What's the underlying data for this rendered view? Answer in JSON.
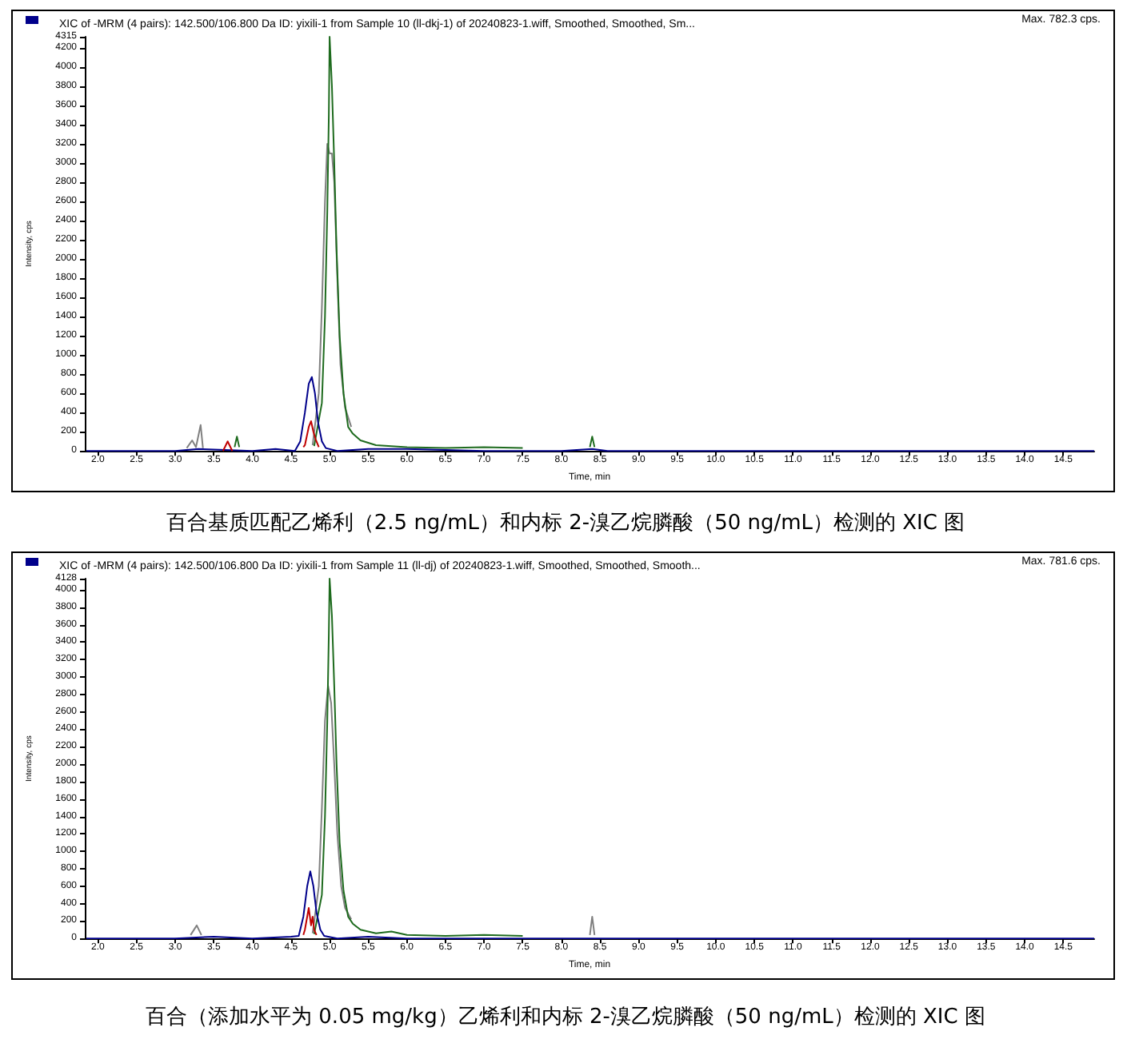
{
  "chart_data": [
    {
      "type": "line",
      "title": "XIC of -MRM (4 pairs): 142.500/106.800 Da ID: yixili-1 from Sample 10 (ll-dkj-1) of 20240823-1.wiff, Smoothed, Smoothed, Sm...",
      "xlabel": "Time, min",
      "ylabel": "Intensity, cps",
      "annotations": [
        "Max. 782.3 cps.",
        "百合基质匹配乙烯利（2.5 ng/mL）和内标 2-溴乙烷膦酸（50 ng/mL）检测的 XIC 图"
      ],
      "xlim": [
        1.83,
        14.9
      ],
      "ylim": [
        0,
        4315
      ],
      "xticks": [
        {
          "value": 2,
          "label": "2.0"
        },
        2.5,
        {
          "value": 3,
          "label": "3.0"
        },
        3.5,
        {
          "value": 4,
          "label": "4.0"
        },
        4.5,
        {
          "value": 5,
          "label": "5.0"
        },
        5.5,
        {
          "value": 6,
          "label": "6.0"
        },
        6.5,
        {
          "value": 7,
          "label": "7.0"
        },
        7.5,
        {
          "value": 8,
          "label": "8.0"
        },
        8.5,
        {
          "value": 9,
          "label": "9.0"
        },
        9.5,
        {
          "value": 10,
          "label": "10.0"
        },
        10.5,
        {
          "value": 11,
          "label": "11.0"
        },
        11.5,
        {
          "value": 12,
          "label": "12.0"
        },
        12.5,
        {
          "value": 13,
          "label": "13.0"
        },
        13.5,
        {
          "value": 14,
          "label": "14.0"
        },
        14.5
      ],
      "yticks": [
        0,
        200,
        400,
        600,
        800,
        1000,
        1200,
        1400,
        1600,
        1800,
        2000,
        2200,
        2400,
        2600,
        2800,
        3000,
        3200,
        3400,
        3600,
        3800,
        4000,
        4200,
        4315
      ],
      "grid": false,
      "marker": "none",
      "line_style": "solid",
      "series": [
        {
          "color": "#808080",
          "x": [
            3.15,
            3.22,
            3.27,
            3.33,
            3.36,
            4.0,
            4.78,
            4.86,
            4.9,
            4.94,
            4.97,
            5.0,
            5.03,
            5.06,
            5.1,
            5.14,
            5.2,
            5.28
          ],
          "values": [
            30,
            110,
            40,
            270,
            30,
            null,
            60,
            600,
            1500,
            2600,
            3200,
            3100,
            3100,
            2800,
            1800,
            900,
            450,
            250
          ]
        },
        {
          "color": "#1e6b1e",
          "x": [
            3.77,
            3.8,
            3.83,
            4.0,
            4.8,
            4.9,
            4.94,
            4.97,
            4.99,
            5.0,
            5.03,
            5.06,
            5.09,
            5.13,
            5.18,
            5.24,
            5.3,
            5.4,
            5.6,
            6.0,
            6.5,
            7.0,
            7.5,
            8.0,
            8.37,
            8.4,
            8.43
          ],
          "values": [
            40,
            150,
            40,
            null,
            50,
            500,
            1400,
            2500,
            3500,
            4315,
            3800,
            3000,
            2100,
            1200,
            600,
            250,
            180,
            110,
            60,
            40,
            30,
            40,
            30,
            null,
            40,
            150,
            40
          ]
        },
        {
          "color": "#00008b",
          "x": [
            1.85,
            2.5,
            3.0,
            3.3,
            4.0,
            4.3,
            4.55,
            4.62,
            4.68,
            4.73,
            4.77,
            4.81,
            4.85,
            4.9,
            4.95,
            5.1,
            5.5,
            6.0,
            7.0,
            8.0,
            8.4,
            8.6,
            9.5,
            11.0,
            13.0,
            14.9
          ],
          "values": [
            0,
            0,
            0,
            20,
            0,
            20,
            0,
            100,
            400,
            700,
            770,
            600,
            300,
            100,
            30,
            0,
            20,
            20,
            0,
            0,
            20,
            0,
            0,
            0,
            0,
            0
          ]
        },
        {
          "color": "#c00000",
          "x": [
            3.62,
            3.68,
            3.74,
            4.0,
            4.66,
            4.68,
            4.73,
            4.76,
            4.79,
            4.82,
            4.86
          ],
          "values": [
            0,
            100,
            0,
            null,
            40,
            60,
            250,
            310,
            200,
            120,
            40
          ]
        }
      ]
    },
    {
      "type": "line",
      "title": "XIC of -MRM (4 pairs): 142.500/106.800 Da ID: yixili-1 from Sample 11 (ll-dj) of 20240823-1.wiff, Smoothed, Smoothed, Smooth...",
      "xlabel": "Time, min",
      "ylabel": "Intensity, cps",
      "annotations": [
        "Max. 781.6 cps.",
        "百合（添加水平为  0.05 mg/kg）乙烯利和内标 2-溴乙烷膦酸（50 ng/mL）检测的 XIC 图"
      ],
      "xlim": [
        1.83,
        14.9
      ],
      "ylim": [
        0,
        4128
      ],
      "xticks": [
        {
          "value": 2,
          "label": "2.0"
        },
        2.5,
        {
          "value": 3,
          "label": "3.0"
        },
        3.5,
        {
          "value": 4,
          "label": "4.0"
        },
        4.5,
        {
          "value": 5,
          "label": "5.0"
        },
        5.5,
        {
          "value": 6,
          "label": "6.0"
        },
        6.5,
        {
          "value": 7,
          "label": "7.0"
        },
        7.5,
        {
          "value": 8,
          "label": "8.0"
        },
        8.5,
        {
          "value": 9,
          "label": "9.0"
        },
        9.5,
        {
          "value": 10,
          "label": "10.0"
        },
        10.5,
        {
          "value": 11,
          "label": "11.0"
        },
        11.5,
        {
          "value": 12,
          "label": "12.0"
        },
        12.5,
        {
          "value": 13,
          "label": "13.0"
        },
        13.5,
        {
          "value": 14,
          "label": "14.0"
        },
        14.5
      ],
      "yticks": [
        0,
        200,
        400,
        600,
        800,
        1000,
        1200,
        1400,
        1600,
        1800,
        2000,
        2200,
        2400,
        2600,
        2800,
        3000,
        3200,
        3400,
        3600,
        3800,
        4000,
        4128
      ],
      "grid": false,
      "marker": "none",
      "line_style": "solid",
      "series": [
        {
          "color": "#808080",
          "x": [
            3.2,
            3.28,
            3.34,
            4.0,
            4.78,
            4.86,
            4.9,
            4.94,
            4.98,
            5.02,
            5.06,
            5.1,
            5.15,
            5.2,
            5.28,
            6.0,
            8.37,
            8.4,
            8.43
          ],
          "values": [
            40,
            150,
            40,
            null,
            60,
            600,
            1500,
            2500,
            2900,
            2700,
            2000,
            1200,
            600,
            350,
            220,
            null,
            40,
            250,
            40
          ]
        },
        {
          "color": "#1e6b1e",
          "x": [
            4.8,
            4.9,
            4.94,
            4.97,
            4.99,
            5.0,
            5.03,
            5.06,
            5.09,
            5.13,
            5.18,
            5.24,
            5.3,
            5.4,
            5.6,
            5.8,
            6.0,
            6.5,
            7.0,
            7.5
          ],
          "values": [
            50,
            500,
            1400,
            2500,
            3500,
            4128,
            3700,
            2900,
            2000,
            1100,
            550,
            250,
            170,
            100,
            60,
            80,
            40,
            30,
            40,
            30
          ]
        },
        {
          "color": "#c00000",
          "x": [
            4.66,
            4.68,
            4.73,
            4.76,
            4.78,
            4.8,
            4.83
          ],
          "values": [
            40,
            100,
            350,
            150,
            250,
            100,
            40
          ]
        },
        {
          "color": "#00008b",
          "x": [
            1.85,
            2.5,
            3.0,
            3.5,
            4.0,
            4.5,
            4.6,
            4.66,
            4.71,
            4.75,
            4.79,
            4.83,
            4.88,
            4.93,
            5.1,
            5.5,
            6.0,
            7.0,
            8.0,
            9.5,
            11.0,
            13.0,
            14.9
          ],
          "values": [
            0,
            0,
            0,
            20,
            0,
            20,
            30,
            250,
            600,
            770,
            600,
            300,
            100,
            30,
            0,
            20,
            0,
            0,
            0,
            0,
            0,
            0,
            0
          ]
        }
      ]
    }
  ]
}
